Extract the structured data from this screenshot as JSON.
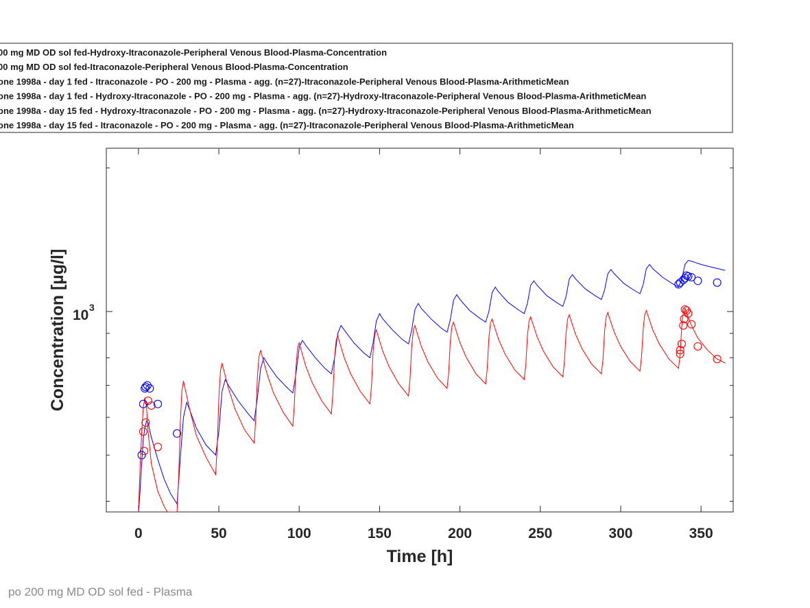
{
  "footer_text": "po 200 mg MD OD sol fed - Plasma",
  "chart_data": {
    "type": "line",
    "xlabel": "Time [h]",
    "ylabel": "Concentration [µg/l]",
    "xlim": [
      -20,
      370
    ],
    "ylim": [
      380,
      2200
    ],
    "yscale": "log",
    "x_ticks": [
      0,
      50,
      100,
      150,
      200,
      250,
      300,
      350
    ],
    "y_tick_label": {
      "base": "10",
      "exponent": "3",
      "value": 1000
    },
    "grid": false,
    "legend_position": "top",
    "legend": [
      {
        "label": "00 mg MD OD sol fed-Hydroxy-Itraconazole-Peripheral Venous Blood-Plasma-Concentration",
        "color": "#0000ff",
        "style": "line"
      },
      {
        "label": "00 mg MD OD sol fed-Itraconazole-Peripheral Venous Blood-Plasma-Concentration",
        "color": "#ff0000",
        "style": "line"
      },
      {
        "label": "one 1998a - day 1 fed - Itraconazole - PO - 200 mg - Plasma - agg. (n=27)-Itraconazole-Peripheral Venous Blood-Plasma-ArithmeticMean",
        "color": "#ff0000",
        "style": "marker"
      },
      {
        "label": "one 1998a - day 1 fed - Hydroxy-Itraconazole - PO - 200 mg - Plasma - agg. (n=27)-Hydroxy-Itraconazole-Peripheral Venous Blood-Plasma-ArithmeticMean",
        "color": "#0000ff",
        "style": "marker"
      },
      {
        "label": "one 1998a - day 15 fed - Hydroxy-Itraconazole - PO - 200 mg - Plasma - agg. (n=27)-Hydroxy-Itraconazole-Peripheral Venous Blood-Plasma-ArithmeticMean",
        "color": "#0000ff",
        "style": "marker"
      },
      {
        "label": "one 1998a - day 15 fed - Itraconazole - PO - 200 mg - Plasma - agg. (n=27)-Itraconazole-Peripheral Venous Blood-Plasma-ArithmeticMean",
        "color": "#ff0000",
        "style": "marker"
      }
    ],
    "series": [
      {
        "name": "Hydroxy-Itraconazole simulated",
        "color": "#0000ff",
        "kind": "line",
        "points": [
          [
            0,
            380
          ],
          [
            1,
            420
          ],
          [
            2,
            480
          ],
          [
            3,
            540
          ],
          [
            4,
            570
          ],
          [
            5,
            590
          ],
          [
            6,
            585
          ],
          [
            8,
            545
          ],
          [
            12,
            490
          ],
          [
            16,
            445
          ],
          [
            20,
            415
          ],
          [
            24,
            395
          ],
          [
            26,
            490
          ],
          [
            28,
            600
          ],
          [
            30,
            645
          ],
          [
            32,
            620
          ],
          [
            36,
            570
          ],
          [
            42,
            525
          ],
          [
            48,
            500
          ],
          [
            50,
            560
          ],
          [
            52,
            680
          ],
          [
            54,
            720
          ],
          [
            56,
            700
          ],
          [
            62,
            650
          ],
          [
            68,
            612
          ],
          [
            72,
            590
          ],
          [
            74,
            660
          ],
          [
            76,
            760
          ],
          [
            78,
            800
          ],
          [
            80,
            780
          ],
          [
            86,
            730
          ],
          [
            92,
            695
          ],
          [
            96,
            675
          ],
          [
            98,
            740
          ],
          [
            100,
            840
          ],
          [
            102,
            870
          ],
          [
            104,
            850
          ],
          [
            110,
            800
          ],
          [
            116,
            760
          ],
          [
            120,
            740
          ],
          [
            122,
            800
          ],
          [
            124,
            900
          ],
          [
            126,
            935
          ],
          [
            128,
            915
          ],
          [
            134,
            860
          ],
          [
            140,
            820
          ],
          [
            144,
            800
          ],
          [
            146,
            860
          ],
          [
            148,
            955
          ],
          [
            150,
            990
          ],
          [
            152,
            965
          ],
          [
            158,
            915
          ],
          [
            164,
            875
          ],
          [
            168,
            855
          ],
          [
            170,
            915
          ],
          [
            172,
            1010
          ],
          [
            174,
            1040
          ],
          [
            176,
            1015
          ],
          [
            182,
            965
          ],
          [
            188,
            925
          ],
          [
            192,
            905
          ],
          [
            194,
            960
          ],
          [
            196,
            1055
          ],
          [
            198,
            1085
          ],
          [
            200,
            1060
          ],
          [
            206,
            1005
          ],
          [
            212,
            970
          ],
          [
            216,
            950
          ],
          [
            218,
            1000
          ],
          [
            220,
            1095
          ],
          [
            222,
            1125
          ],
          [
            224,
            1100
          ],
          [
            230,
            1045
          ],
          [
            236,
            1010
          ],
          [
            240,
            990
          ],
          [
            242,
            1040
          ],
          [
            244,
            1135
          ],
          [
            246,
            1160
          ],
          [
            248,
            1135
          ],
          [
            254,
            1080
          ],
          [
            260,
            1045
          ],
          [
            264,
            1025
          ],
          [
            266,
            1075
          ],
          [
            268,
            1170
          ],
          [
            270,
            1195
          ],
          [
            272,
            1170
          ],
          [
            278,
            1115
          ],
          [
            284,
            1080
          ],
          [
            288,
            1060
          ],
          [
            290,
            1110
          ],
          [
            292,
            1200
          ],
          [
            294,
            1225
          ],
          [
            296,
            1200
          ],
          [
            302,
            1145
          ],
          [
            308,
            1110
          ],
          [
            312,
            1090
          ],
          [
            314,
            1140
          ],
          [
            316,
            1230
          ],
          [
            318,
            1255
          ],
          [
            320,
            1230
          ],
          [
            326,
            1180
          ],
          [
            332,
            1145
          ],
          [
            336,
            1125
          ],
          [
            338,
            1170
          ],
          [
            340,
            1255
          ],
          [
            342,
            1280
          ],
          [
            344,
            1275
          ],
          [
            350,
            1255
          ],
          [
            356,
            1240
          ],
          [
            365,
            1220
          ]
        ]
      },
      {
        "name": "Itraconazole simulated",
        "color": "#ff0000",
        "kind": "line",
        "points": [
          [
            0,
            380
          ],
          [
            1,
            470
          ],
          [
            2,
            560
          ],
          [
            3,
            630
          ],
          [
            4,
            660
          ],
          [
            5,
            630
          ],
          [
            6,
            560
          ],
          [
            8,
            480
          ],
          [
            12,
            420
          ],
          [
            16,
            390
          ],
          [
            18,
            380
          ],
          [
            24,
            380
          ],
          [
            25,
            450
          ],
          [
            26,
            580
          ],
          [
            27,
            680
          ],
          [
            28,
            715
          ],
          [
            29,
            690
          ],
          [
            32,
            620
          ],
          [
            36,
            550
          ],
          [
            42,
            495
          ],
          [
            48,
            455
          ],
          [
            49,
            520
          ],
          [
            50,
            660
          ],
          [
            51,
            750
          ],
          [
            52,
            780
          ],
          [
            53,
            755
          ],
          [
            56,
            690
          ],
          [
            60,
            625
          ],
          [
            66,
            565
          ],
          [
            72,
            530
          ],
          [
            73,
            600
          ],
          [
            74,
            730
          ],
          [
            75,
            805
          ],
          [
            76,
            830
          ],
          [
            77,
            805
          ],
          [
            80,
            740
          ],
          [
            84,
            675
          ],
          [
            90,
            615
          ],
          [
            96,
            575
          ],
          [
            97,
            640
          ],
          [
            98,
            765
          ],
          [
            99,
            840
          ],
          [
            100,
            860
          ],
          [
            101,
            835
          ],
          [
            104,
            770
          ],
          [
            108,
            710
          ],
          [
            114,
            650
          ],
          [
            120,
            610
          ],
          [
            121,
            675
          ],
          [
            122,
            800
          ],
          [
            123,
            870
          ],
          [
            124,
            890
          ],
          [
            125,
            865
          ],
          [
            128,
            800
          ],
          [
            132,
            740
          ],
          [
            138,
            680
          ],
          [
            144,
            640
          ],
          [
            145,
            700
          ],
          [
            146,
            825
          ],
          [
            147,
            895
          ],
          [
            148,
            915
          ],
          [
            149,
            890
          ],
          [
            152,
            825
          ],
          [
            156,
            765
          ],
          [
            162,
            705
          ],
          [
            168,
            665
          ],
          [
            169,
            725
          ],
          [
            170,
            845
          ],
          [
            171,
            910
          ],
          [
            172,
            935
          ],
          [
            173,
            910
          ],
          [
            176,
            845
          ],
          [
            180,
            785
          ],
          [
            186,
            725
          ],
          [
            192,
            690
          ],
          [
            193,
            745
          ],
          [
            194,
            865
          ],
          [
            195,
            930
          ],
          [
            196,
            950
          ],
          [
            197,
            925
          ],
          [
            200,
            860
          ],
          [
            204,
            800
          ],
          [
            210,
            740
          ],
          [
            216,
            705
          ],
          [
            217,
            760
          ],
          [
            218,
            880
          ],
          [
            219,
            945
          ],
          [
            220,
            965
          ],
          [
            221,
            940
          ],
          [
            224,
            875
          ],
          [
            228,
            815
          ],
          [
            234,
            755
          ],
          [
            240,
            720
          ],
          [
            241,
            775
          ],
          [
            242,
            890
          ],
          [
            243,
            955
          ],
          [
            244,
            975
          ],
          [
            245,
            950
          ],
          [
            248,
            885
          ],
          [
            252,
            825
          ],
          [
            258,
            765
          ],
          [
            264,
            730
          ],
          [
            265,
            785
          ],
          [
            266,
            900
          ],
          [
            267,
            965
          ],
          [
            268,
            985
          ],
          [
            269,
            960
          ],
          [
            272,
            895
          ],
          [
            276,
            835
          ],
          [
            282,
            775
          ],
          [
            288,
            740
          ],
          [
            289,
            795
          ],
          [
            290,
            910
          ],
          [
            291,
            975
          ],
          [
            292,
            995
          ],
          [
            293,
            970
          ],
          [
            296,
            905
          ],
          [
            300,
            845
          ],
          [
            306,
            785
          ],
          [
            312,
            750
          ],
          [
            313,
            805
          ],
          [
            314,
            920
          ],
          [
            315,
            985
          ],
          [
            316,
            1005
          ],
          [
            317,
            980
          ],
          [
            320,
            915
          ],
          [
            324,
            855
          ],
          [
            330,
            795
          ],
          [
            336,
            760
          ],
          [
            337,
            815
          ],
          [
            338,
            930
          ],
          [
            339,
            995
          ],
          [
            340,
            1015
          ],
          [
            341,
            995
          ],
          [
            344,
            935
          ],
          [
            348,
            880
          ],
          [
            354,
            830
          ],
          [
            360,
            795
          ],
          [
            365,
            780
          ]
        ]
      },
      {
        "name": "Itraconazole observed",
        "color": "#ff0000",
        "kind": "marker",
        "points": [
          [
            3,
            560
          ],
          [
            3.5,
            510
          ],
          [
            4.5,
            585
          ],
          [
            6,
            650
          ],
          [
            8,
            635
          ],
          [
            12,
            520
          ],
          [
            337,
            815
          ],
          [
            337,
            830
          ],
          [
            338,
            855
          ],
          [
            339,
            935
          ],
          [
            339.5,
            965
          ],
          [
            340,
            1010
          ],
          [
            341,
            1005
          ],
          [
            342,
            990
          ],
          [
            344,
            940
          ],
          [
            348,
            845
          ],
          [
            360,
            795
          ]
        ]
      },
      {
        "name": "Hydroxy-Itraconazole observed",
        "color": "#0000ff",
        "kind": "marker",
        "points": [
          [
            2,
            500
          ],
          [
            3,
            640
          ],
          [
            4,
            690
          ],
          [
            4.5,
            695
          ],
          [
            5.5,
            700
          ],
          [
            7,
            690
          ],
          [
            12,
            640
          ],
          [
            24,
            555
          ],
          [
            336,
            1140
          ],
          [
            337,
            1150
          ],
          [
            339,
            1165
          ],
          [
            340,
            1175
          ],
          [
            341,
            1190
          ],
          [
            342,
            1185
          ],
          [
            344,
            1180
          ],
          [
            348,
            1160
          ],
          [
            360,
            1150
          ]
        ]
      }
    ]
  }
}
